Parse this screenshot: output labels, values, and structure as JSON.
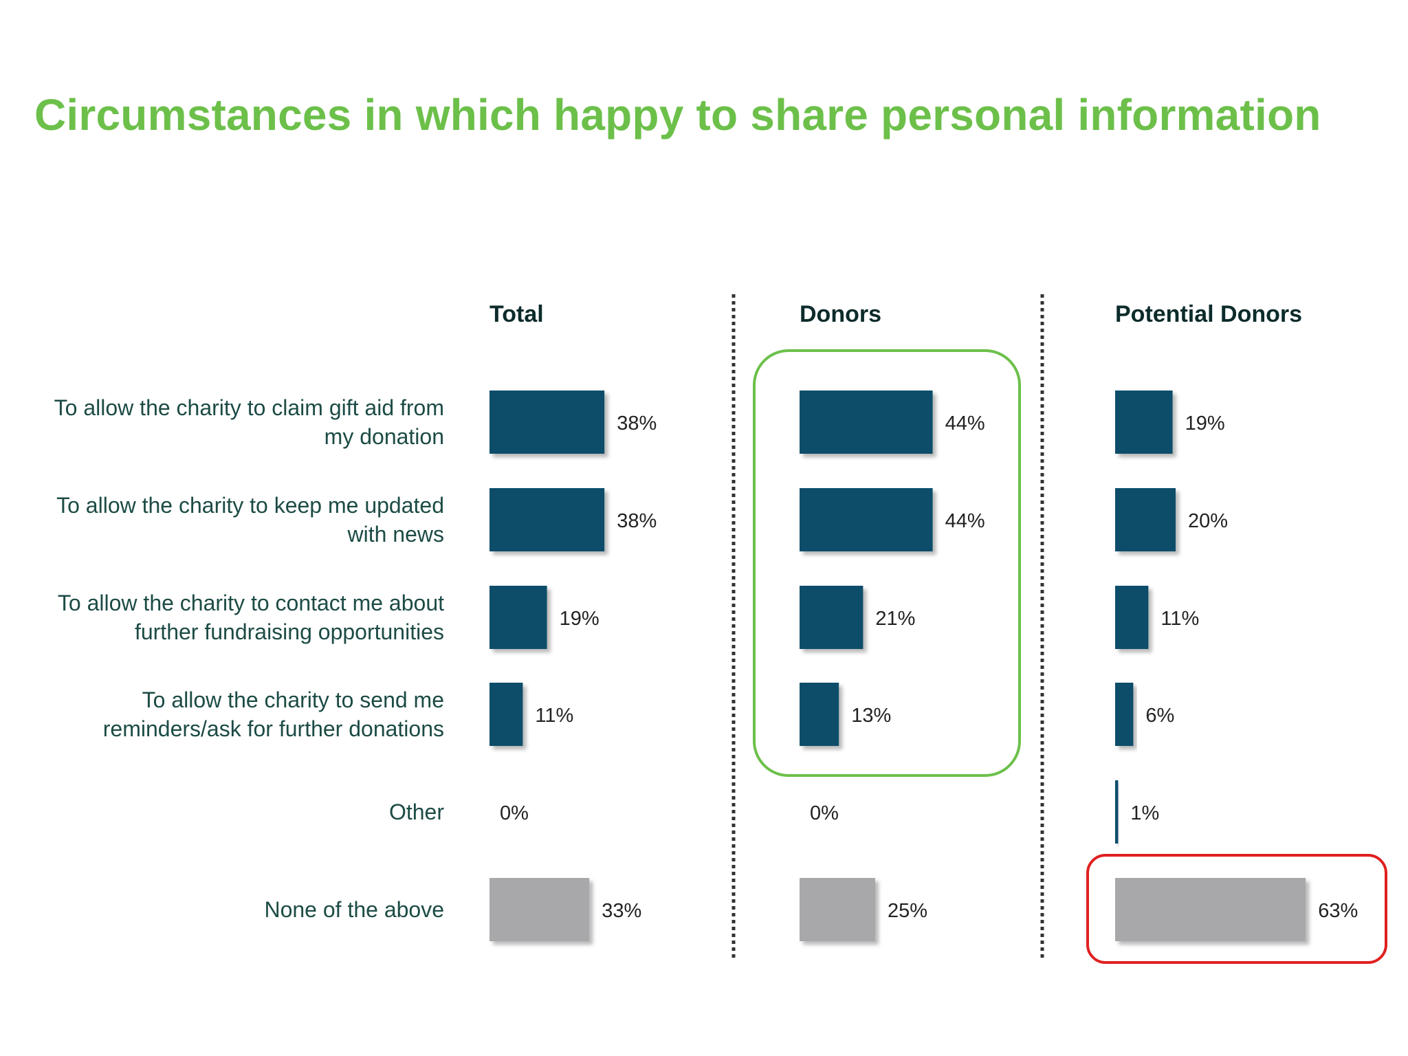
{
  "title": "Circumstances in which happy to share personal information",
  "colors": {
    "title": "#6cc04a",
    "bar": "#0d4d6a",
    "bar_none": "#a8a8aa",
    "highlight_green": "#6cc04a",
    "highlight_red": "#e02020",
    "divider": "#333333"
  },
  "chart_data": {
    "type": "bar",
    "orientation": "horizontal",
    "value_format": "percent",
    "categories": [
      [
        "To allow the charity to claim gift aid from",
        "my donation"
      ],
      [
        "To allow the charity to keep me updated",
        "with news"
      ],
      [
        "To allow the charity to contact me about",
        "further fundraising opportunities"
      ],
      [
        "To allow the charity to send me",
        "reminders/ask for further donations"
      ],
      [
        "Other"
      ],
      [
        "None of the above"
      ]
    ],
    "series": [
      {
        "name": "Total",
        "values": [
          38,
          38,
          19,
          11,
          0,
          33
        ]
      },
      {
        "name": "Donors",
        "values": [
          44,
          44,
          21,
          13,
          0,
          25
        ]
      },
      {
        "name": "Potential Donors",
        "values": [
          19,
          20,
          11,
          6,
          1,
          63
        ]
      }
    ],
    "value_labels": [
      [
        "38%",
        "38%",
        "19%",
        "11%",
        "0%",
        "33%"
      ],
      [
        "44%",
        "44%",
        "21%",
        "13%",
        "0%",
        "25%"
      ],
      [
        "19%",
        "20%",
        "11%",
        "6%",
        "1%",
        "63%"
      ]
    ],
    "grey_category_index": 5,
    "highlights": [
      {
        "panel": "Donors",
        "rows": [
          0,
          3
        ],
        "color": "green"
      },
      {
        "panel": "Potential Donors",
        "rows": [
          5,
          5
        ],
        "color": "red"
      }
    ],
    "grid": false,
    "legend": "none"
  }
}
